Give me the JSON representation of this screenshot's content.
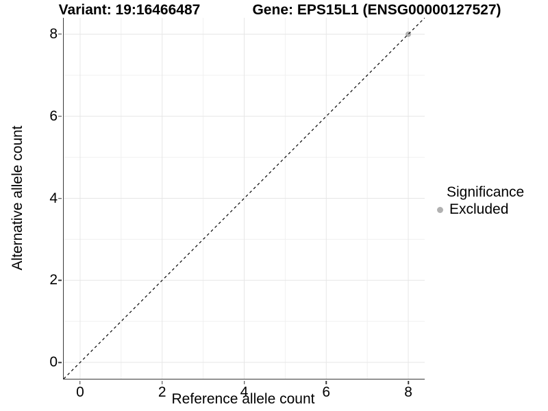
{
  "header": {
    "variant_title": "Variant: 19:16466487",
    "gene_title": "Gene: EPS15L1 (ENSG00000127527)"
  },
  "chart_data": {
    "type": "scatter",
    "xlabel": "Reference allele count",
    "ylabel": "Alternative allele count",
    "xlim": [
      -0.4,
      8.4
    ],
    "ylim": [
      -0.4,
      8.4
    ],
    "x_ticks": [
      0,
      2,
      4,
      6,
      8
    ],
    "y_ticks": [
      0,
      2,
      4,
      6,
      8
    ],
    "grid": {
      "on": true,
      "major_breaks": [
        0,
        2,
        4,
        6,
        8
      ],
      "minor_breaks": [
        1,
        3,
        5,
        7
      ]
    },
    "series": [
      {
        "name": "Excluded",
        "color": "#b1b1b1",
        "points": [
          {
            "x": 8,
            "y": 8
          }
        ]
      }
    ],
    "reference_line": {
      "type": "identity y=x",
      "style": "dashed",
      "color": "#000000"
    },
    "legend": {
      "title": "Significance",
      "position": "right",
      "items": [
        {
          "label": "Excluded",
          "color": "#b1b1b1"
        }
      ]
    },
    "colors": {
      "grid_major": "#e6e6e6",
      "grid_minor": "#f0f0f0",
      "axis_line": "#383838",
      "background": "#ffffff",
      "text": "#000000"
    }
  }
}
